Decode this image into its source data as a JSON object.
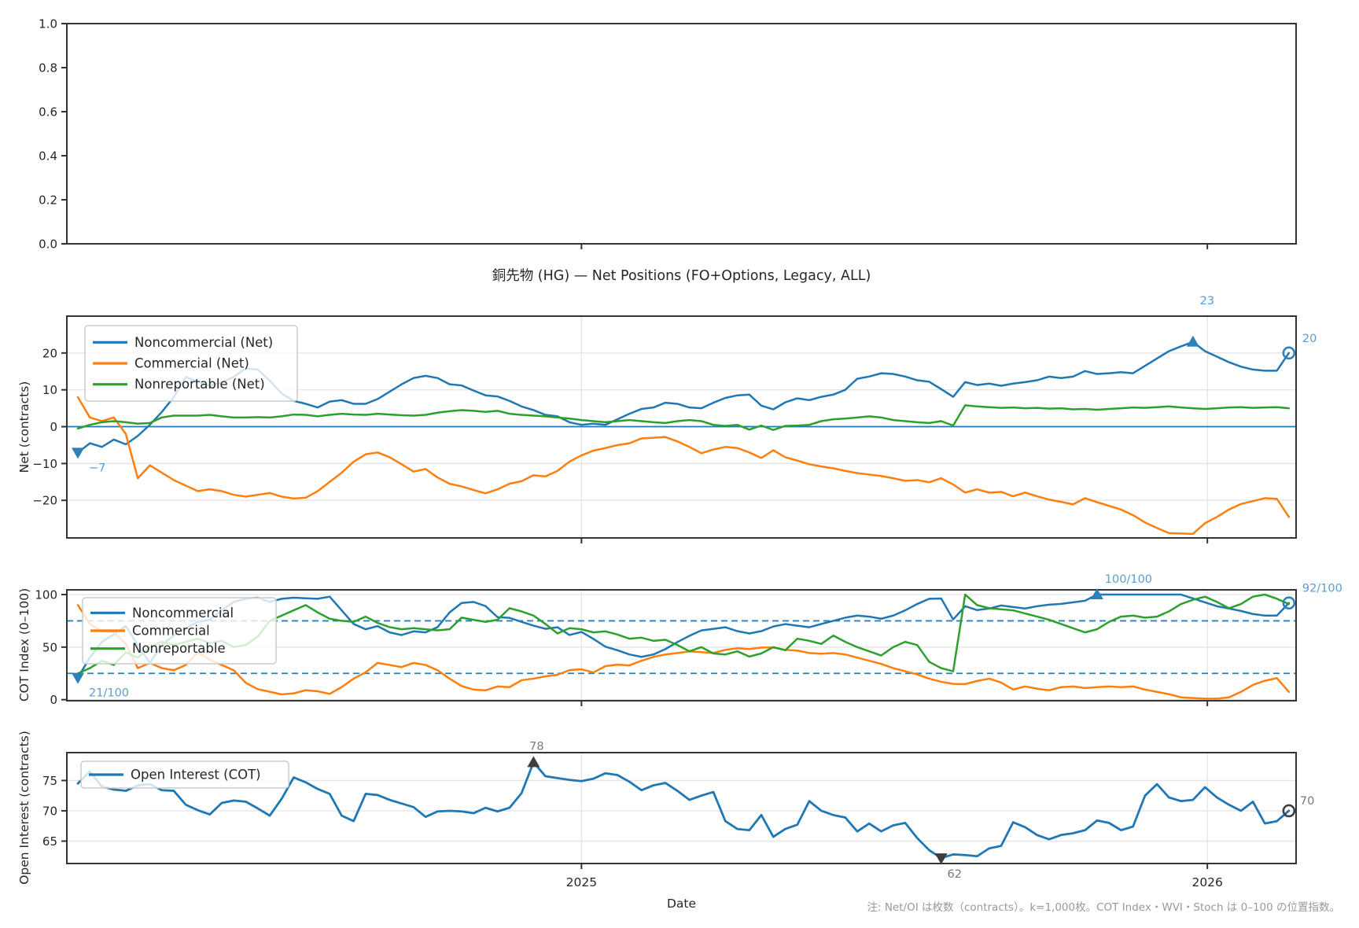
{
  "figure": {
    "title": "銅先物 (HG) — Net Positions (FO+Options, Legacy, ALL)",
    "xlabel": "Date",
    "note": "注: Net/OI は枚数（contracts）。k=1,000枚。COT Index・WVI・Stoch は 0–100 の位置指数。",
    "background": "#ffffff"
  },
  "colors": {
    "noncommercial": "#1f77b4",
    "commercial": "#ff7f0e",
    "nonreportable": "#2ca02c",
    "open_interest": "#1f77b4",
    "annotation_blue_text": "#5b9bd0",
    "annotation_blue_marker": "#2f7fb8",
    "annotation_dark_marker": "#3f3f3f",
    "annotation_gray_text": "#7a7a7a",
    "grid": "#e5e5e5",
    "spine": "#333333",
    "dashed_band": "#2e7fb8",
    "zero_line": "#1f77b4"
  },
  "x_axis": {
    "xlim": [
      -0.92,
      101.6
    ],
    "ticks": [
      {
        "label": "2025",
        "pos": 42.0
      },
      {
        "label": "2026",
        "pos": 94.2
      }
    ]
  },
  "chart_data": [
    {
      "type": "line",
      "title": "",
      "ylabel": "",
      "ylim": [
        0,
        1
      ],
      "yticks": [
        {
          "label": "1.0",
          "value": 1.0
        },
        {
          "label": "0.8",
          "value": 0.8
        },
        {
          "label": "0.6",
          "value": 0.6
        },
        {
          "label": "0.4",
          "value": 0.4
        },
        {
          "label": "0.2",
          "value": 0.2
        },
        {
          "label": "0.0",
          "value": 0.0
        }
      ],
      "grid": false,
      "x_tick_labels": false,
      "hlines": [],
      "series": [],
      "legend": null,
      "annotations": []
    },
    {
      "type": "line",
      "title": "銅先物 (HG) — Net Positions (FO+Options, Legacy, ALL)",
      "ylabel": "Net (contracts)",
      "ylim": [
        -30.2,
        30.0
      ],
      "yticks": [
        {
          "label": "20",
          "value": 20
        },
        {
          "label": "10",
          "value": 10
        },
        {
          "label": "0",
          "value": 0
        },
        {
          "label": "−10",
          "value": -10
        },
        {
          "label": "−20",
          "value": -20
        }
      ],
      "grid": true,
      "x_tick_labels": false,
      "hlines": [
        {
          "y": 0,
          "style": "solid",
          "color": "zero_line"
        }
      ],
      "legend": {
        "labels": [
          "Noncommercial (Net)",
          "Commercial (Net)",
          "Nonreportable (Net)"
        ]
      },
      "series": [
        {
          "name": "Noncommercial (Net)",
          "color": "noncommercial",
          "values": [
            -7,
            -4.5,
            -5.5,
            -3.5,
            -4.8,
            -2.5,
            0.5,
            4,
            8,
            13.5,
            12.2,
            11.2,
            12,
            13.5,
            15.8,
            15.5,
            12.5,
            9,
            7,
            6.2,
            5.2,
            6.8,
            7.2,
            6.2,
            6.2,
            7.5,
            9.5,
            11.5,
            13.2,
            13.8,
            13.2,
            11.5,
            11.2,
            9.8,
            8.5,
            8.2,
            7,
            5.5,
            4.5,
            3.2,
            2.8,
            1.2,
            0.5,
            0.8,
            0.5,
            2,
            3.5,
            4.8,
            5.2,
            6.5,
            6.2,
            5.2,
            5,
            6.5,
            7.8,
            8.5,
            8.7,
            5.7,
            4.7,
            6.6,
            7.7,
            7.2,
            8.1,
            8.7,
            10,
            13,
            13.6,
            14.5,
            14.3,
            13.6,
            12.6,
            12.2,
            10.2,
            8.1,
            12.1,
            11.3,
            11.7,
            11.1,
            11.7,
            12.1,
            12.6,
            13.6,
            13.2,
            13.6,
            15.1,
            14.3,
            14.5,
            14.8,
            14.5,
            16.5,
            18.5,
            20.5,
            21.8,
            23,
            20.5,
            19,
            17.5,
            16.3,
            15.5,
            15.2,
            15.2,
            20
          ]
        },
        {
          "name": "Commercial (Net)",
          "color": "commercial",
          "values": [
            8,
            2.5,
            1.5,
            2.5,
            -2,
            -14,
            -10.5,
            -12.5,
            -14.5,
            -16,
            -17.5,
            -17,
            -17.5,
            -18.5,
            -19,
            -18.5,
            -18,
            -19,
            -19.5,
            -19.3,
            -17.5,
            -15,
            -12.5,
            -9.5,
            -7.5,
            -7,
            -8.3,
            -10.2,
            -12.2,
            -11.5,
            -13.8,
            -15.5,
            -16.2,
            -17.2,
            -18.1,
            -17,
            -15.5,
            -14.8,
            -13.2,
            -13.5,
            -12,
            -9.5,
            -7.8,
            -6.5,
            -5.8,
            -5,
            -4.5,
            -3.2,
            -3,
            -2.8,
            -4,
            -5.5,
            -7.2,
            -6.2,
            -5.5,
            -5.8,
            -7,
            -8.5,
            -6.4,
            -8.3,
            -9.2,
            -10.2,
            -10.8,
            -11.3,
            -12,
            -12.6,
            -13,
            -13.4,
            -14,
            -14.7,
            -14.5,
            -15.1,
            -14,
            -15.7,
            -17.9,
            -17,
            -17.9,
            -17.7,
            -18.9,
            -17.9,
            -18.9,
            -19.8,
            -20.4,
            -21.1,
            -19.4,
            -20.5,
            -21.5,
            -22.5,
            -24,
            -26,
            -27.5,
            -28.9,
            -29,
            -29.1,
            -26.2,
            -24.5,
            -22.5,
            -21,
            -20.2,
            -19.4,
            -19.6,
            -24.5
          ]
        },
        {
          "name": "Nonreportable (Net)",
          "color": "nonreportable",
          "values": [
            -0.5,
            0.5,
            1.2,
            1.5,
            1.2,
            0.8,
            1,
            2.5,
            3,
            3,
            3,
            3.2,
            2.8,
            2.5,
            2.5,
            2.6,
            2.5,
            2.8,
            3.3,
            3.2,
            2.8,
            3.2,
            3.5,
            3.3,
            3.2,
            3.5,
            3.3,
            3.1,
            3,
            3.2,
            3.8,
            4.2,
            4.5,
            4.3,
            4,
            4.3,
            3.5,
            3.2,
            3,
            2.8,
            2.5,
            2.2,
            1.8,
            1.5,
            1.2,
            1.5,
            1.8,
            1.5,
            1.2,
            1,
            1.5,
            1.8,
            1.5,
            0.5,
            0.2,
            0.5,
            -0.8,
            0.3,
            -0.9,
            0.2,
            0.3,
            0.5,
            1.5,
            2,
            2.2,
            2.5,
            2.8,
            2.5,
            1.8,
            1.5,
            1.2,
            1,
            1.5,
            0.3,
            5.8,
            5.5,
            5.3,
            5.1,
            5.2,
            5,
            5.1,
            4.9,
            5,
            4.7,
            4.8,
            4.6,
            4.8,
            5,
            5.2,
            5.1,
            5.3,
            5.5,
            5.2,
            5,
            4.8,
            5,
            5.2,
            5.3,
            5.1,
            5.2,
            5.3,
            5
          ]
        }
      ],
      "annotations": [
        {
          "text": "−7",
          "series": 0,
          "index": 0,
          "marker": "triangle-down",
          "placement": "below-start",
          "palette": "blue"
        },
        {
          "text": "23",
          "series": 0,
          "index": 93,
          "marker": "triangle-up",
          "placement": "above",
          "palette": "blue"
        },
        {
          "text": "20",
          "series": 0,
          "index": 101,
          "marker": "circle-open",
          "placement": "end-right-up",
          "palette": "blue"
        }
      ]
    },
    {
      "type": "line",
      "title": "",
      "ylabel": "COT Index (0–100)",
      "ylim": [
        -1,
        104.5
      ],
      "yticks": [
        {
          "label": "100",
          "value": 100
        },
        {
          "label": "50",
          "value": 50
        },
        {
          "label": "0",
          "value": 0
        }
      ],
      "grid": true,
      "x_tick_labels": false,
      "hlines": [
        {
          "y": 75,
          "style": "dashed",
          "color": "dashed_band"
        },
        {
          "y": 25,
          "style": "dashed",
          "color": "dashed_band"
        }
      ],
      "legend": {
        "labels": [
          "Noncommercial",
          "Commercial",
          "Nonreportable"
        ]
      },
      "series": [
        {
          "name": "Noncommercial",
          "color": "noncommercial",
          "values": [
            21,
            40,
            55,
            62,
            70,
            52,
            35,
            52,
            61,
            68,
            74,
            76,
            85,
            93,
            96,
            97,
            93,
            96,
            97,
            96.5,
            96,
            98,
            85,
            72,
            67,
            70,
            64,
            61.5,
            65,
            64,
            69,
            83,
            92,
            93,
            89,
            78.5,
            77.8,
            74.1,
            70.4,
            67.4,
            68.9,
            61.5,
            64.4,
            57.8,
            50.4,
            47,
            43,
            40.7,
            43,
            48.1,
            54.8,
            60.7,
            65.9,
            67.4,
            68.9,
            65.2,
            63,
            65.2,
            69.6,
            71.9,
            70.4,
            68.9,
            72,
            75,
            78,
            80,
            79,
            77,
            80,
            85,
            91,
            96,
            96.3,
            76.3,
            88.9,
            85.2,
            86.7,
            89.6,
            88.1,
            86.7,
            88.9,
            90.4,
            91.1,
            92.6,
            94.1,
            100,
            100,
            100,
            100,
            100,
            100,
            100,
            100,
            96.3,
            92.6,
            88.9,
            86.7,
            84.4,
            81.5,
            80,
            80,
            92
          ]
        },
        {
          "name": "Commercial",
          "color": "commercial",
          "values": [
            90,
            72,
            65,
            64,
            53,
            30,
            35,
            30,
            28,
            33,
            45,
            38,
            33,
            28,
            16,
            10,
            7.5,
            5,
            6,
            9,
            8,
            5.5,
            12,
            20,
            26,
            35,
            33,
            31,
            35,
            33,
            28,
            20,
            13,
            9.6,
            8.9,
            12.6,
            11.9,
            18.5,
            20,
            22.2,
            23.7,
            28.1,
            28.9,
            25.9,
            31.9,
            33.3,
            32.6,
            37,
            40.7,
            43,
            44.4,
            45.9,
            45.2,
            44.4,
            47.4,
            48.9,
            48.1,
            49.6,
            49.6,
            47.4,
            46.7,
            44.4,
            43.7,
            44.4,
            43,
            40,
            37,
            34,
            30,
            27,
            24,
            20,
            17,
            15,
            14.8,
            17.8,
            20,
            16.3,
            9.6,
            12.6,
            10.4,
            8.9,
            11.9,
            12.6,
            11.1,
            11.9,
            12.6,
            11.9,
            12.6,
            9.6,
            7.4,
            5.2,
            2.2,
            1.5,
            1,
            1,
            2.2,
            7.4,
            14,
            18,
            20.5,
            7.4
          ]
        },
        {
          "name": "Nonreportable",
          "color": "nonreportable",
          "values": [
            25,
            30,
            37,
            33,
            45,
            40,
            50,
            55,
            52,
            55,
            58,
            54,
            56,
            50,
            52,
            60,
            75,
            80,
            85,
            90,
            83,
            77,
            75,
            74,
            79,
            73,
            69,
            67,
            68,
            67,
            66,
            67,
            78,
            76,
            74,
            76,
            87,
            84,
            80,
            72,
            63,
            68,
            67,
            64,
            65,
            62,
            58,
            59,
            56,
            57,
            52,
            46,
            50,
            44,
            43,
            46,
            41,
            44,
            50,
            47,
            58,
            56,
            53,
            61,
            55,
            50,
            46,
            42,
            50,
            55,
            52,
            36,
            30,
            27,
            100,
            90,
            87,
            86,
            85,
            82,
            79,
            76,
            72,
            68,
            64,
            67,
            74,
            79,
            80,
            78,
            79,
            84,
            91,
            95,
            98,
            93,
            87,
            91,
            98,
            100,
            96,
            91
          ]
        }
      ],
      "annotations": [
        {
          "text": "21/100",
          "series": 0,
          "index": 0,
          "marker": "triangle-down",
          "placement": "below-start",
          "palette": "blue"
        },
        {
          "text": "100/100",
          "series": 0,
          "index": 85,
          "marker": "triangle-up",
          "placement": "above-wide",
          "palette": "blue"
        },
        {
          "text": "92/100",
          "series": 0,
          "index": 101,
          "marker": "circle-open",
          "placement": "end-right-up",
          "palette": "blue"
        }
      ]
    },
    {
      "type": "line",
      "title": "",
      "ylabel": "Open Interest (contracts)",
      "ylim": [
        61.3,
        79.6
      ],
      "yticks": [
        {
          "label": "75",
          "value": 75
        },
        {
          "label": "70",
          "value": 70
        },
        {
          "label": "65",
          "value": 65
        }
      ],
      "grid": true,
      "x_tick_labels": true,
      "hlines": [],
      "legend": {
        "labels": [
          "Open Interest (COT)"
        ]
      },
      "series": [
        {
          "name": "Open Interest (COT)",
          "color": "open_interest",
          "values": [
            74.5,
            76.5,
            74,
            73.5,
            73.3,
            74.2,
            74.4,
            73.4,
            73.3,
            71,
            70.1,
            69.4,
            71.3,
            71.7,
            71.5,
            70.4,
            69.2,
            72,
            75.5,
            74.7,
            73.6,
            72.8,
            69.2,
            68.3,
            72.8,
            72.6,
            71.8,
            71.2,
            70.6,
            69,
            69.9,
            70,
            69.9,
            69.6,
            70.5,
            69.9,
            70.5,
            72.9,
            78,
            75.7,
            75.4,
            75.1,
            74.9,
            75.3,
            76.2,
            75.9,
            74.8,
            73.4,
            74.2,
            74.6,
            73.3,
            71.8,
            72.5,
            73.1,
            68.3,
            67,
            66.8,
            69.3,
            65.7,
            67,
            67.7,
            71.6,
            70,
            69.3,
            68.9,
            66.6,
            67.9,
            66.6,
            67.6,
            68,
            65.5,
            63.5,
            62.2,
            62.8,
            62.7,
            62.5,
            63.8,
            64.2,
            68.1,
            67.3,
            66,
            65.3,
            66,
            66.3,
            66.8,
            68.4,
            68,
            66.8,
            67.4,
            72.5,
            74.4,
            72.2,
            71.6,
            71.8,
            73.9,
            72.2,
            71,
            70,
            71.5,
            67.9,
            68.3,
            70
          ]
        }
      ],
      "annotations": [
        {
          "text": "78",
          "series": 0,
          "index": 38,
          "marker": "triangle-up",
          "placement": "above-tight",
          "palette": "dark"
        },
        {
          "text": "62",
          "series": 0,
          "index": 72,
          "marker": "triangle-down",
          "placement": "below",
          "palette": "dark"
        },
        {
          "text": "70",
          "series": 0,
          "index": 101,
          "marker": "circle-open",
          "placement": "end-right",
          "palette": "dark"
        }
      ]
    }
  ]
}
